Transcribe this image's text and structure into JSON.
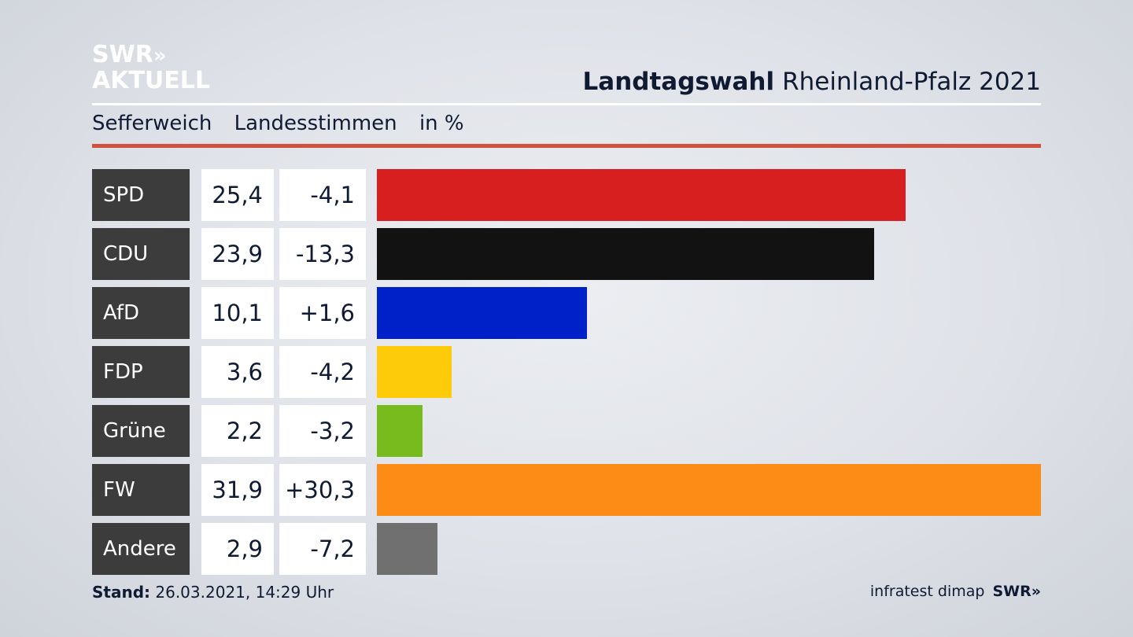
{
  "logo": {
    "line1": "SWR",
    "line1_mark": "»",
    "line2": "AKTUELL"
  },
  "header": {
    "title_bold": "Landtagswahl",
    "title_rest": "Rheinland-Pfalz 2021"
  },
  "subtitle": {
    "district": "Sefferweich",
    "kind": "Landesstimmen",
    "unit": "in %"
  },
  "footer": {
    "stand_label": "Stand:",
    "stand_value": "26.03.2021, 14:29 Uhr",
    "source": "infratest dimap",
    "brand": "SWR",
    "brand_mark": "»"
  },
  "chart_data": {
    "type": "bar",
    "orientation": "horizontal",
    "categories": [
      "SPD",
      "CDU",
      "AfD",
      "FDP",
      "Grüne",
      "FW",
      "Andere"
    ],
    "values": [
      25.4,
      23.9,
      10.1,
      3.6,
      2.2,
      31.9,
      2.9
    ],
    "value_labels": [
      "25,4",
      "23,9",
      "10,1",
      "3,6",
      "2,2",
      "31,9",
      "2,9"
    ],
    "change_labels": [
      "-4,1",
      "-13,3",
      "+1,6",
      "-4,2",
      "-3,2",
      "+30,3",
      "-7,2"
    ],
    "changes": [
      -4.1,
      -13.3,
      1.6,
      -4.2,
      -3.2,
      30.3,
      -7.2
    ],
    "colors": [
      "#d71f1f",
      "#121212",
      "#0021c8",
      "#fdcb0a",
      "#77bb1e",
      "#fd8c16",
      "#707070"
    ],
    "xlim": [
      0,
      31.9
    ],
    "grid": false
  }
}
